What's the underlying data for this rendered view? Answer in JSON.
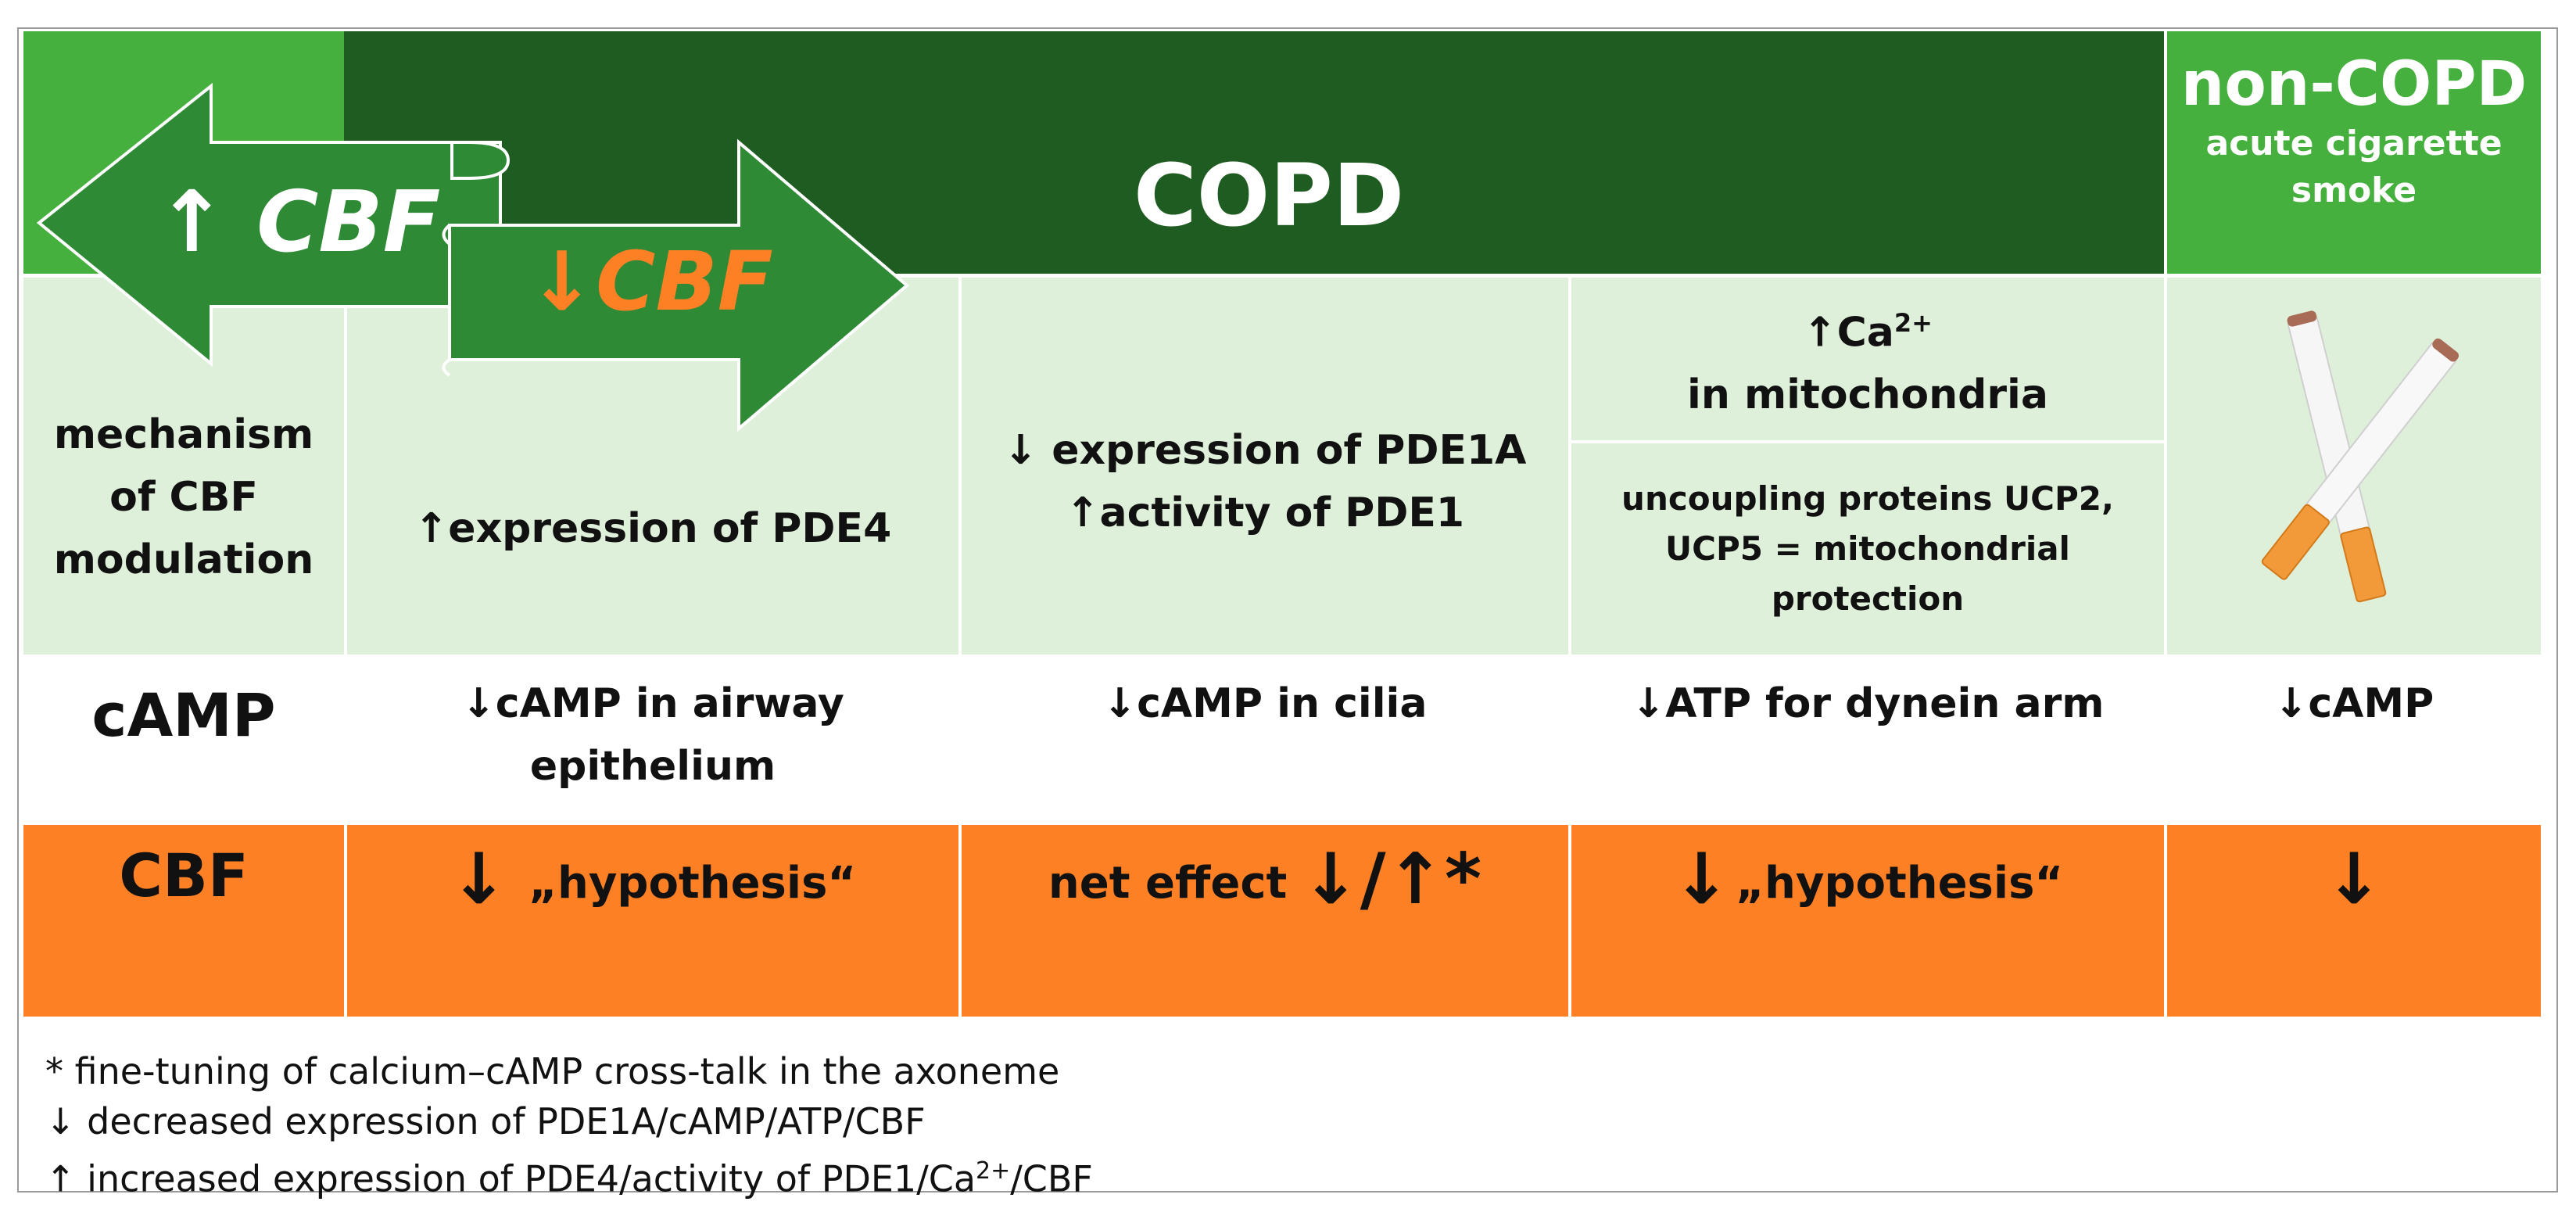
{
  "header": {
    "copd_label": "COPD",
    "noncopd_label": "non-COPD",
    "noncopd_sub_line1": "acute cigarette",
    "noncopd_sub_line2": "smoke"
  },
  "arrows": {
    "left_label": "↑ CBF",
    "right_label": "↓CBF"
  },
  "rows": {
    "mechanism": {
      "label_line1": "mechanism",
      "label_line2": "of CBF",
      "label_line3": "modulation",
      "col1": "↑expression of PDE4",
      "col2_line1": "↓ expression of PDE1A",
      "col2_line2": "↑activity of PDE1",
      "col3_top_prefix": "↑Ca",
      "col3_top_sup": "2+",
      "col3_top_line2": "in mitochondria",
      "col3_bottom_line1": "uncoupling proteins UCP2,",
      "col3_bottom_line2": "UCP5 = mitochondrial",
      "col3_bottom_line3": "protection"
    },
    "camp": {
      "label": "cAMP",
      "col1_line1": "↓cAMP in airway",
      "col1_line2": "epithelium",
      "col2": "↓cAMP in cilia",
      "col3": "↓ATP for dynein arm",
      "col4": "↓cAMP"
    },
    "cbf": {
      "label": "CBF",
      "col1_arrow": "↓",
      "col1_text": "„hypothesis“",
      "col2_text": "net effect",
      "col2_arrows": "↓/↑*",
      "col3_arrow": "↓",
      "col3_text": "„hypothesis“",
      "col4_arrow": "↓"
    }
  },
  "footnotes": {
    "line1": "*  fine-tuning of calcium–cAMP cross-talk in the axoneme",
    "line2": "↓ decreased expression of PDE1A/cAMP/ATP/CBF",
    "line3_prefix": "↑ increased expression of PDE4/activity of PDE1/Ca",
    "line3_sup": "2+",
    "line3_suffix": "/CBF"
  },
  "colors": {
    "dark_green": "#1f5c21",
    "mid_green": "#2f8a36",
    "bright_green": "#45b03d",
    "light_green": "#dff0da",
    "orange": "#fd8025"
  }
}
